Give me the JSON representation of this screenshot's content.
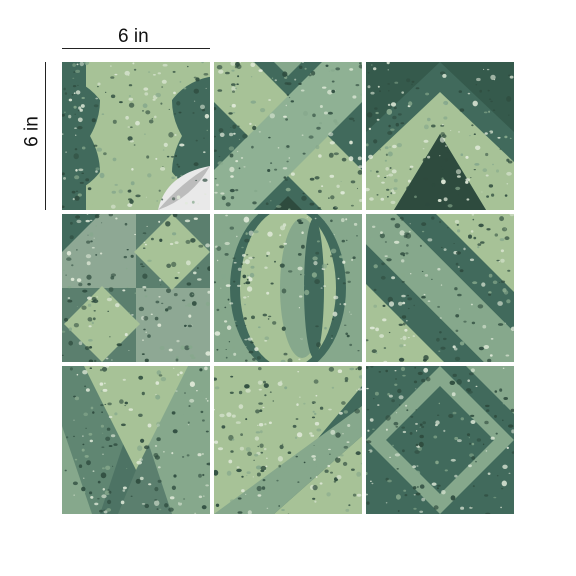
{
  "dimensions": {
    "width_label": "6 in",
    "height_label": "6 in"
  },
  "colors": {
    "light_green": "#a7c297",
    "mid_green": "#86a88c",
    "dark_green": "#416a5c",
    "chip_dark": "#2e4b3e",
    "chip_light": "#dfe9d8",
    "corner_peel": "#e9e9e9"
  },
  "tiles": [
    {
      "pattern": "circle-arc-peel"
    },
    {
      "pattern": "x-cross"
    },
    {
      "pattern": "chevron"
    },
    {
      "pattern": "diamond-check"
    },
    {
      "pattern": "ellipse"
    },
    {
      "pattern": "diagonal-stripes"
    },
    {
      "pattern": "v-shape"
    },
    {
      "pattern": "triangle-split"
    },
    {
      "pattern": "square-diamond"
    }
  ]
}
